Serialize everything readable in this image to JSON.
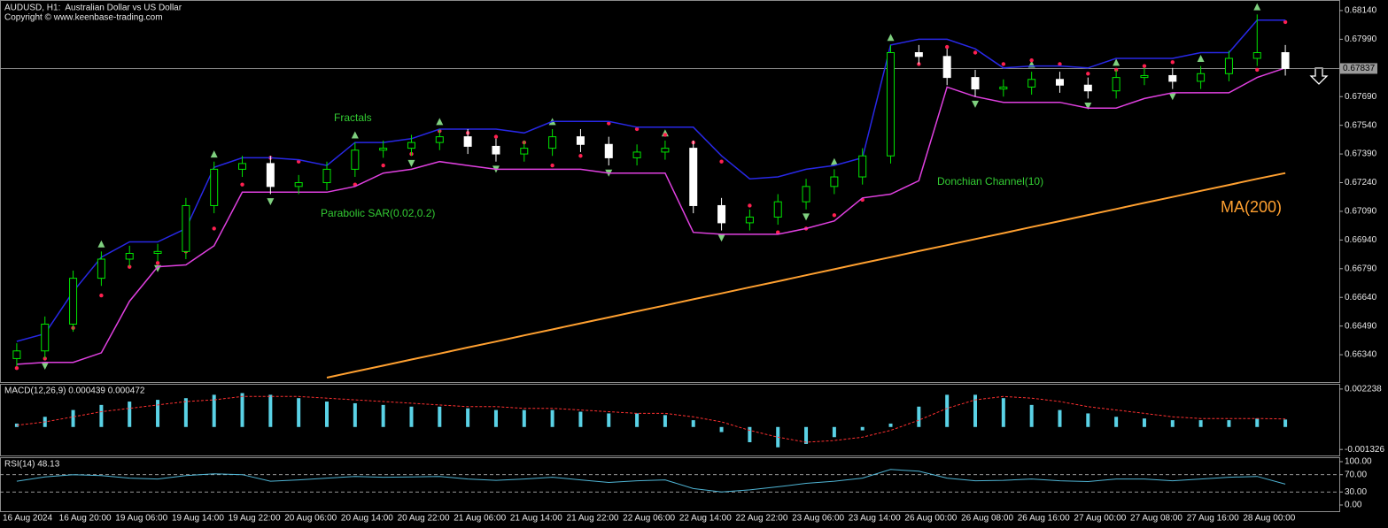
{
  "chart_data": [
    {
      "type": "candlestick",
      "title": "AUDUSD, H1:  Australian Dollar vs US Dollar",
      "subtitle": "Copyright © www.keenbase-trading.com",
      "categories": [
        "16 Aug 2024",
        null,
        "16 Aug 20:00",
        null,
        "19 Aug 06:00",
        null,
        "19 Aug 14:00",
        null,
        "19 Aug 22:00",
        null,
        "20 Aug 06:00",
        null,
        "20 Aug 14:00",
        null,
        "20 Aug 22:00",
        null,
        "21 Aug 06:00",
        null,
        "21 Aug 14:00",
        null,
        "21 Aug 22:00",
        null,
        "22 Aug 06:00",
        null,
        "22 Aug 14:00",
        null,
        "22 Aug 22:00",
        null,
        "23 Aug 06:00",
        null,
        "23 Aug 14:00",
        null,
        "26 Aug 00:00",
        null,
        "26 Aug 08:00",
        null,
        "26 Aug 16:00",
        null,
        "27 Aug 00:00",
        null,
        "27 Aug 08:00",
        null,
        "27 Aug 16:00",
        null,
        "28 Aug 00:00",
        null
      ],
      "open": [
        0.6632,
        0.6636,
        0.665,
        0.6674,
        0.6684,
        0.6687,
        0.6688,
        0.6712,
        0.6731,
        0.6734,
        0.6722,
        0.6724,
        0.6731,
        0.6741,
        0.6742,
        0.6745,
        0.6748,
        0.6743,
        0.6739,
        0.6742,
        0.6748,
        0.6744,
        0.6737,
        0.674,
        0.6742,
        0.6712,
        0.6703,
        0.6706,
        0.6714,
        0.6722,
        0.6727,
        0.6738,
        0.6792,
        0.679,
        0.6779,
        0.6773,
        0.6774,
        0.6778,
        0.6775,
        0.6772,
        0.6779,
        0.678,
        0.6777,
        0.6781,
        0.6789,
        0.6792
      ],
      "high": [
        0.664,
        0.6654,
        0.6678,
        0.6688,
        0.6691,
        0.6692,
        0.6716,
        0.6735,
        0.6738,
        0.6738,
        0.6728,
        0.6735,
        0.6745,
        0.6746,
        0.6749,
        0.6752,
        0.6752,
        0.6747,
        0.6746,
        0.6752,
        0.6752,
        0.6748,
        0.6744,
        0.6746,
        0.6746,
        0.6716,
        0.671,
        0.6718,
        0.6726,
        0.6731,
        0.6742,
        0.6796,
        0.6796,
        0.6794,
        0.6783,
        0.6778,
        0.6782,
        0.6782,
        0.6779,
        0.6783,
        0.6784,
        0.6784,
        0.6785,
        0.6793,
        0.6812,
        0.6796
      ],
      "low": [
        0.6628,
        0.6632,
        0.6646,
        0.667,
        0.668,
        0.6683,
        0.6684,
        0.6708,
        0.6727,
        0.6718,
        0.6718,
        0.672,
        0.6727,
        0.6737,
        0.6738,
        0.6741,
        0.6739,
        0.6735,
        0.6735,
        0.6738,
        0.674,
        0.6733,
        0.6733,
        0.6736,
        0.6708,
        0.6699,
        0.6699,
        0.6702,
        0.671,
        0.6718,
        0.6723,
        0.6734,
        0.6786,
        0.6775,
        0.6769,
        0.6769,
        0.677,
        0.6771,
        0.6768,
        0.6768,
        0.6775,
        0.6773,
        0.6773,
        0.6777,
        0.6785,
        0.678
      ],
      "close": [
        0.6636,
        0.665,
        0.6674,
        0.6684,
        0.6687,
        0.6688,
        0.6712,
        0.6731,
        0.6734,
        0.6722,
        0.6724,
        0.6731,
        0.6741,
        0.6742,
        0.6745,
        0.6748,
        0.6743,
        0.6739,
        0.6742,
        0.6748,
        0.6744,
        0.6737,
        0.674,
        0.6742,
        0.6712,
        0.6703,
        0.6706,
        0.6714,
        0.6722,
        0.6727,
        0.6738,
        0.6792,
        0.679,
        0.6779,
        0.6773,
        0.6774,
        0.6778,
        0.6775,
        0.6772,
        0.6779,
        0.678,
        0.6777,
        0.6781,
        0.6789,
        0.6792,
        0.67837
      ],
      "up_color": "#00e600",
      "down_color": "#ffffff",
      "series": [
        {
          "name": "Fractals",
          "style": "fractals",
          "color": "#7fd07f",
          "up": [
            null,
            null,
            null,
            0.6692,
            null,
            null,
            null,
            0.6739,
            null,
            null,
            null,
            null,
            0.6749,
            null,
            null,
            0.6756,
            null,
            null,
            null,
            0.6756,
            null,
            null,
            null,
            0.675,
            null,
            null,
            null,
            null,
            null,
            0.6735,
            null,
            0.68,
            null,
            null,
            null,
            null,
            0.6786,
            null,
            null,
            0.6787,
            null,
            null,
            0.6789,
            null,
            0.6816,
            null
          ],
          "down": [
            null,
            0.6628,
            null,
            null,
            null,
            0.6679,
            null,
            null,
            null,
            0.6714,
            null,
            null,
            null,
            null,
            0.6734,
            null,
            null,
            0.6731,
            null,
            null,
            null,
            0.6729,
            null,
            null,
            null,
            0.6695,
            null,
            null,
            0.6706,
            null,
            null,
            null,
            null,
            null,
            0.6765,
            null,
            null,
            null,
            0.6764,
            null,
            null,
            0.6769,
            null,
            null,
            null,
            null
          ]
        },
        {
          "name": "Parabolic SAR(0.02,0.2)",
          "style": "dots",
          "color": "#ff2050",
          "values": [
            0.6627,
            0.6632,
            0.6648,
            0.6665,
            0.668,
            0.6682,
            0.6688,
            0.67,
            0.6723,
            0.6737,
            0.6735,
            0.673,
            0.6723,
            0.6733,
            0.6739,
            0.6751,
            0.675,
            0.6748,
            0.6745,
            0.6733,
            0.6738,
            0.6755,
            0.6752,
            0.6749,
            0.6745,
            0.6735,
            0.6712,
            0.6698,
            0.67,
            0.6707,
            0.6715,
            0.676,
            0.6786,
            0.6795,
            0.6792,
            0.6786,
            0.6788,
            0.6786,
            0.6781,
            0.6783,
            0.6785,
            0.6787,
            0.678,
            0.6782,
            0.6783,
            0.6808
          ]
        },
        {
          "name": "Donchian Channel(10)",
          "style": "channel",
          "color": "#2828e6",
          "lower_color": "#e040e0",
          "upper": [
            0.6641,
            0.6645,
            0.6667,
            0.6685,
            0.6693,
            0.6693,
            0.67,
            0.6732,
            0.6737,
            0.6737,
            0.6736,
            0.6733,
            0.6745,
            0.6745,
            0.6747,
            0.6752,
            0.6752,
            0.6752,
            0.675,
            0.6756,
            0.6756,
            0.6756,
            0.6753,
            0.6753,
            0.6753,
            0.6738,
            0.6726,
            0.6727,
            0.6731,
            0.6733,
            0.6737,
            0.6796,
            0.6799,
            0.6799,
            0.6794,
            0.6784,
            0.6785,
            0.6785,
            0.6784,
            0.6789,
            0.6789,
            0.6789,
            0.6792,
            0.6792,
            0.6809,
            0.6809
          ],
          "lower": [
            0.6629,
            0.663,
            0.663,
            0.6635,
            0.6662,
            0.668,
            0.6681,
            0.6691,
            0.6719,
            0.6719,
            0.6719,
            0.6719,
            0.6722,
            0.6729,
            0.6731,
            0.6735,
            0.6733,
            0.6731,
            0.6731,
            0.6731,
            0.6731,
            0.6729,
            0.6729,
            0.6729,
            0.6698,
            0.6697,
            0.6697,
            0.6697,
            0.67,
            0.6704,
            0.6716,
            0.6718,
            0.6725,
            0.6774,
            0.6769,
            0.6766,
            0.6766,
            0.6766,
            0.6763,
            0.6763,
            0.6768,
            0.6771,
            0.6771,
            0.6771,
            0.6779,
            0.6784
          ]
        },
        {
          "name": "MA(200)",
          "style": "line",
          "color": "#ffa030",
          "values": [
            null,
            null,
            null,
            null,
            null,
            null,
            null,
            null,
            null,
            null,
            null,
            0.6622,
            0.66252,
            0.66283,
            0.66315,
            0.66346,
            0.66378,
            0.66409,
            0.66441,
            0.66472,
            0.66504,
            0.66535,
            0.66567,
            0.66598,
            0.6663,
            0.66661,
            0.66693,
            0.66724,
            0.66756,
            0.66787,
            0.66819,
            0.6685,
            0.66882,
            0.66913,
            0.66945,
            0.66976,
            0.67008,
            0.67039,
            0.67071,
            0.67102,
            0.67134,
            0.67165,
            0.67197,
            0.67228,
            0.6726,
            0.6729
          ]
        }
      ],
      "last_price": {
        "value": 0.67837,
        "label": "0.67837"
      },
      "ylim": [
        0.66197,
        0.68186
      ],
      "yticks": [
        {
          "value": 0.6814,
          "label": "0.68140"
        },
        {
          "value": 0.6799,
          "label": "0.67990"
        },
        {
          "value": 0.6784,
          "label": "0.67840"
        },
        {
          "value": 0.6769,
          "label": "0.67690"
        },
        {
          "value": 0.6754,
          "label": "0.67540"
        },
        {
          "value": 0.6739,
          "label": "0.67390"
        },
        {
          "value": 0.6724,
          "label": "0.67240"
        },
        {
          "value": 0.6709,
          "label": "0.67090"
        },
        {
          "value": 0.6694,
          "label": "0.66940"
        },
        {
          "value": 0.6679,
          "label": "0.66790"
        },
        {
          "value": 0.6664,
          "label": "0.66640"
        },
        {
          "value": 0.6649,
          "label": "0.66490"
        },
        {
          "value": 0.6634,
          "label": "0.66340"
        }
      ]
    },
    {
      "type": "macd",
      "title": "MACD(12,26,9) 0.000439 0.000472",
      "series": [
        {
          "style": "histogram",
          "color": "#5ad2e6",
          "values": [
            0.0002,
            0.0006,
            0.001,
            0.0013,
            0.0015,
            0.0016,
            0.0017,
            0.0019,
            0.002,
            0.0019,
            0.0017,
            0.0015,
            0.0014,
            0.0013,
            0.0012,
            0.0012,
            0.0011,
            0.001,
            0.001,
            0.001,
            0.0009,
            0.0008,
            0.0008,
            0.0007,
            0.0004,
            -0.0003,
            -0.0009,
            -0.0012,
            -0.001,
            -0.0006,
            -0.0002,
            0.0002,
            0.0012,
            0.0019,
            0.0019,
            0.0017,
            0.0013,
            0.001,
            0.0008,
            0.0006,
            0.0005,
            0.0004,
            0.0004,
            0.0004,
            0.0005,
            0.000439
          ]
        },
        {
          "style": "dashed",
          "color": "#ff3030",
          "values": [
            0.0001,
            0.0003,
            0.0006,
            0.0009,
            0.0011,
            0.0013,
            0.0015,
            0.0016,
            0.0018,
            0.0018,
            0.0018,
            0.0017,
            0.0016,
            0.0015,
            0.0014,
            0.0013,
            0.0012,
            0.0012,
            0.0011,
            0.0011,
            0.001,
            0.0009,
            0.0008,
            0.0008,
            0.0006,
            0.0003,
            -0.0002,
            -0.0006,
            -0.0009,
            -0.0008,
            -0.0006,
            -0.0002,
            0.0004,
            0.0011,
            0.0016,
            0.0018,
            0.0017,
            0.0015,
            0.0012,
            0.001,
            0.0008,
            0.0006,
            0.0005,
            0.0005,
            0.0005,
            0.000472
          ]
        }
      ],
      "ylim": [
        -0.001682,
        0.002493
      ],
      "yticks": [
        0.002238,
        -0.001326
      ]
    },
    {
      "type": "rsi",
      "title": "RSI(14) 48.13",
      "series": [
        {
          "style": "line",
          "color": "#4fb4d4",
          "values": [
            55,
            65,
            70,
            68,
            62,
            60,
            68,
            72,
            70,
            55,
            58,
            62,
            66,
            64,
            65,
            66,
            60,
            57,
            60,
            64,
            58,
            52,
            56,
            58,
            38,
            30,
            35,
            42,
            50,
            55,
            62,
            82,
            78,
            62,
            56,
            57,
            60,
            56,
            54,
            60,
            60,
            56,
            60,
            64,
            66,
            48.13
          ]
        }
      ],
      "levels": [
        70,
        30
      ],
      "ylim": [
        -14.3,
        108.2
      ],
      "yticks": [
        {
          "value": 100,
          "label": "100.00"
        },
        {
          "value": 70,
          "label": "70.00"
        },
        {
          "value": 30,
          "label": "30.00"
        },
        {
          "value": 0,
          "label": "0.00"
        }
      ]
    }
  ]
}
